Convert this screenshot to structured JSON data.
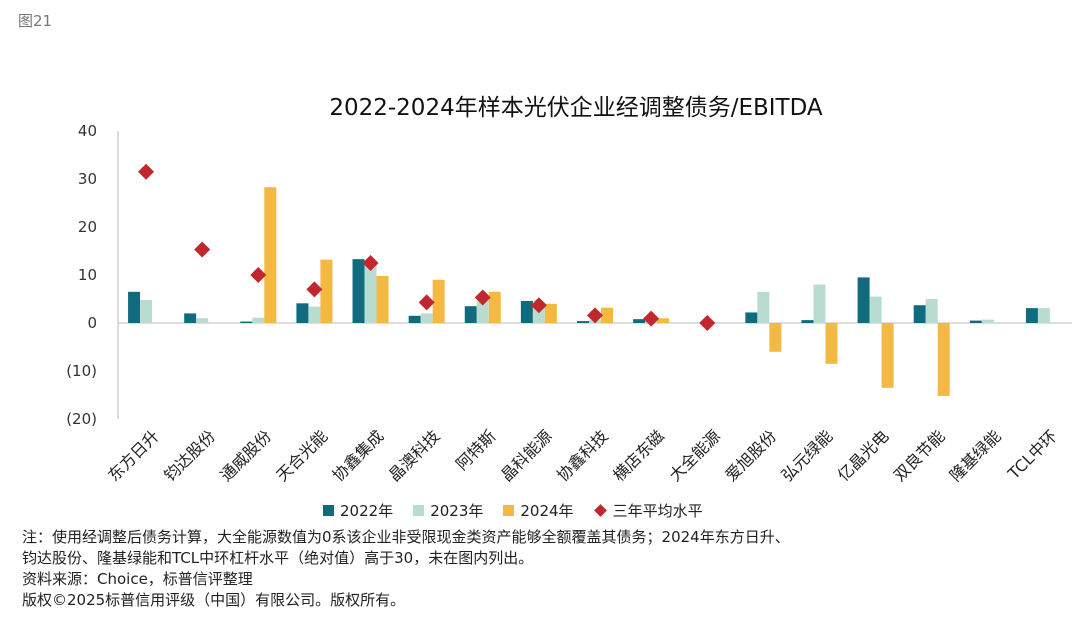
{
  "figure_label": "图21",
  "colors": {
    "y2022": "#0f6b7d",
    "y2023": "#b9dcd0",
    "y2024": "#f4b942",
    "avg": "#c0282d",
    "axis": "#bbbbbb"
  },
  "chart_data": {
    "type": "bar",
    "title": "2022-2024年样本光伏企业经调整债务/EBITDA",
    "categories": [
      "东方日升",
      "钧达股份",
      "通威股份",
      "天合光能",
      "协鑫集成",
      "晶澳科技",
      "阿特斯",
      "晶科能源",
      "协鑫科技",
      "横店东磁",
      "大全能源",
      "爱旭股份",
      "弘元绿能",
      "亿晶光电",
      "双良节能",
      "隆基绿能",
      "TCL中环"
    ],
    "ylim": [
      -20,
      40
    ],
    "yticks": [
      40,
      30,
      20,
      10,
      0,
      -10,
      -20
    ],
    "ytick_labels": [
      "40",
      "30",
      "20",
      "10",
      "0",
      "(10)",
      "(20)"
    ],
    "series": [
      {
        "name": "2022年",
        "type": "bar",
        "values": [
          6.5,
          2.0,
          0.3,
          4.1,
          13.3,
          1.5,
          3.5,
          4.6,
          0.4,
          0.8,
          0,
          2.2,
          0.6,
          9.5,
          3.7,
          0.5,
          3.1
        ]
      },
      {
        "name": "2023年",
        "type": "bar",
        "values": [
          4.8,
          1.0,
          1.1,
          3.4,
          13.0,
          2.0,
          4.7,
          3.8,
          0.6,
          1.0,
          0,
          6.5,
          8.0,
          5.5,
          5.0,
          0.7,
          3.1
        ]
      },
      {
        "name": "2024年",
        "type": "bar",
        "values": [
          null,
          null,
          28.3,
          13.2,
          9.8,
          9.0,
          6.5,
          4.0,
          3.2,
          1.0,
          0,
          -6.0,
          -8.5,
          -13.5,
          -15.2,
          null,
          null
        ]
      },
      {
        "name": "三年平均水平",
        "type": "marker",
        "values": [
          31.5,
          15.3,
          10.0,
          7.0,
          12.5,
          4.3,
          5.3,
          3.7,
          1.6,
          0.9,
          0,
          null,
          null,
          null,
          null,
          null,
          null
        ]
      }
    ]
  },
  "notes": [
    "注：使用经调整后债务计算，大全能源数值为0系该企业非受限现金类资产能够全额覆盖其债务；2024年东方日升、",
    "钧达股份、隆基绿能和TCL中环杠杆水平（绝对值）高于30，未在图内列出。",
    "资料来源：Choice，标普信评整理",
    "版权©2025标普信用评级（中国）有限公司。版权所有。"
  ]
}
